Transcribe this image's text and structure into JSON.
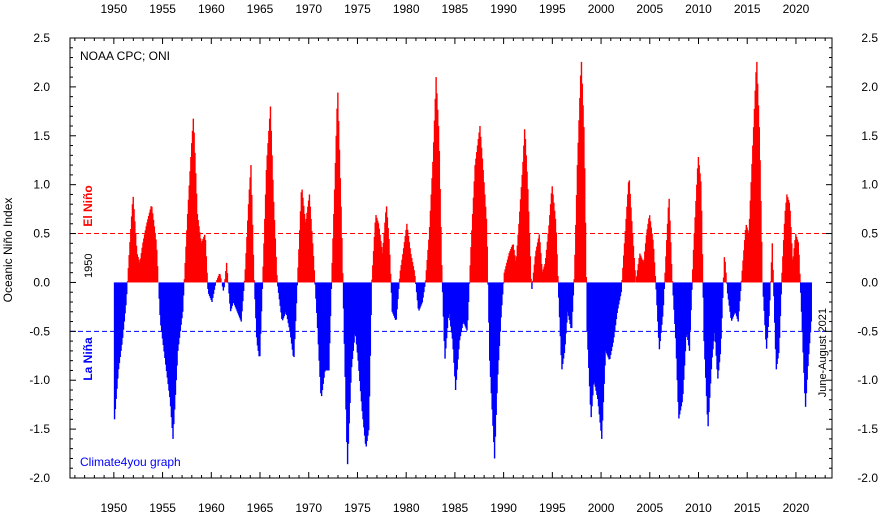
{
  "chart_data": {
    "type": "bar",
    "title": "NOAA CPC; ONI",
    "ylabel": "Oceanic Niño Index",
    "credit": "Climate4you graph",
    "start_label": "1950",
    "end_label": "June-August 2021",
    "el_nino_label": "El Niño",
    "la_nina_label": "La Niña",
    "thresholds": [
      0.5,
      -0.5
    ],
    "xlim": [
      1945.5,
      2023.7
    ],
    "ylim": [
      -2.0,
      2.5
    ],
    "xticks": [
      1950,
      1955,
      1960,
      1965,
      1970,
      1975,
      1980,
      1985,
      1990,
      1995,
      2000,
      2005,
      2010,
      2015,
      2020
    ],
    "yticks": [
      2.5,
      2.0,
      1.5,
      1.0,
      0.5,
      0.0,
      -0.5,
      -1.0,
      -1.5,
      -2.0
    ],
    "ytick_labels": [
      "2.5",
      "2.0",
      "1.5",
      "1.0",
      "0.5",
      "0.0",
      "-0.5",
      "-1.0",
      "-1.5",
      "-2.0"
    ],
    "colors": {
      "positive": "#ff0000",
      "negative": "#0000ff",
      "el_nino_line": "#ff0000",
      "la_nina_line": "#0000ff"
    },
    "keypoints": [
      [
        1950.0,
        -1.4
      ],
      [
        1950.4,
        -0.9
      ],
      [
        1950.8,
        -0.6
      ],
      [
        1951.2,
        -0.2
      ],
      [
        1951.7,
        0.6
      ],
      [
        1951.9,
        0.9
      ],
      [
        1952.3,
        0.3
      ],
      [
        1952.6,
        0.2
      ],
      [
        1952.9,
        0.4
      ],
      [
        1953.3,
        0.6
      ],
      [
        1953.8,
        0.8
      ],
      [
        1954.3,
        0.4
      ],
      [
        1954.7,
        -0.4
      ],
      [
        1955.2,
        -0.8
      ],
      [
        1955.7,
        -1.2
      ],
      [
        1956.0,
        -1.6
      ],
      [
        1956.5,
        -0.7
      ],
      [
        1957.0,
        -0.3
      ],
      [
        1957.5,
        0.7
      ],
      [
        1957.9,
        1.4
      ],
      [
        1958.1,
        1.7
      ],
      [
        1958.5,
        0.7
      ],
      [
        1958.9,
        0.4
      ],
      [
        1959.3,
        0.5
      ],
      [
        1959.6,
        -0.1
      ],
      [
        1960.0,
        -0.2
      ],
      [
        1960.4,
        0.0
      ],
      [
        1960.8,
        0.1
      ],
      [
        1961.2,
        -0.1
      ],
      [
        1961.5,
        0.2
      ],
      [
        1961.9,
        -0.3
      ],
      [
        1962.2,
        -0.2
      ],
      [
        1962.6,
        -0.3
      ],
      [
        1963.0,
        -0.4
      ],
      [
        1963.4,
        0.1
      ],
      [
        1963.8,
        0.9
      ],
      [
        1964.0,
        1.2
      ],
      [
        1964.3,
        0.1
      ],
      [
        1964.6,
        -0.6
      ],
      [
        1964.9,
        -0.8
      ],
      [
        1965.3,
        0.3
      ],
      [
        1965.6,
        1.2
      ],
      [
        1966.0,
        1.8
      ],
      [
        1966.3,
        0.9
      ],
      [
        1966.7,
        0.0
      ],
      [
        1967.2,
        -0.4
      ],
      [
        1967.6,
        -0.3
      ],
      [
        1968.0,
        -0.5
      ],
      [
        1968.4,
        -0.8
      ],
      [
        1968.9,
        0.3
      ],
      [
        1969.2,
        1.0
      ],
      [
        1969.6,
        0.6
      ],
      [
        1970.0,
        0.9
      ],
      [
        1970.4,
        0.3
      ],
      [
        1970.8,
        -0.4
      ],
      [
        1971.2,
        -1.2
      ],
      [
        1971.6,
        -0.9
      ],
      [
        1972.0,
        -0.9
      ],
      [
        1972.3,
        0.1
      ],
      [
        1972.6,
        1.0
      ],
      [
        1972.9,
        2.0
      ],
      [
        1973.3,
        0.6
      ],
      [
        1973.6,
        -0.7
      ],
      [
        1973.9,
        -1.9
      ],
      [
        1974.3,
        -0.9
      ],
      [
        1974.7,
        -0.5
      ],
      [
        1975.0,
        -0.8
      ],
      [
        1975.4,
        -1.3
      ],
      [
        1975.8,
        -1.7
      ],
      [
        1976.1,
        -1.5
      ],
      [
        1976.4,
        0.0
      ],
      [
        1976.8,
        0.7
      ],
      [
        1977.1,
        0.6
      ],
      [
        1977.5,
        0.3
      ],
      [
        1977.9,
        0.8
      ],
      [
        1978.2,
        0.4
      ],
      [
        1978.5,
        -0.3
      ],
      [
        1978.9,
        -0.4
      ],
      [
        1979.3,
        0.1
      ],
      [
        1979.6,
        0.3
      ],
      [
        1980.0,
        0.6
      ],
      [
        1980.4,
        0.3
      ],
      [
        1980.8,
        0.1
      ],
      [
        1981.2,
        -0.3
      ],
      [
        1981.6,
        -0.2
      ],
      [
        1981.9,
        0.0
      ],
      [
        1982.3,
        0.5
      ],
      [
        1982.7,
        1.3
      ],
      [
        1983.0,
        2.1
      ],
      [
        1983.3,
        1.5
      ],
      [
        1983.6,
        0.1
      ],
      [
        1983.9,
        -0.8
      ],
      [
        1984.3,
        -0.3
      ],
      [
        1984.7,
        -0.6
      ],
      [
        1985.0,
        -1.1
      ],
      [
        1985.4,
        -0.6
      ],
      [
        1985.8,
        -0.4
      ],
      [
        1986.2,
        -0.5
      ],
      [
        1986.6,
        0.4
      ],
      [
        1987.0,
        1.2
      ],
      [
        1987.5,
        1.6
      ],
      [
        1987.8,
        1.2
      ],
      [
        1988.2,
        0.6
      ],
      [
        1988.5,
        -0.8
      ],
      [
        1988.8,
        -1.4
      ],
      [
        1989.0,
        -1.8
      ],
      [
        1989.3,
        -1.0
      ],
      [
        1989.7,
        -0.3
      ],
      [
        1990.0,
        0.1
      ],
      [
        1990.5,
        0.3
      ],
      [
        1990.9,
        0.4
      ],
      [
        1991.2,
        0.2
      ],
      [
        1991.5,
        0.6
      ],
      [
        1991.9,
        1.2
      ],
      [
        1992.1,
        1.6
      ],
      [
        1992.4,
        1.0
      ],
      [
        1992.8,
        -0.1
      ],
      [
        1993.2,
        0.3
      ],
      [
        1993.6,
        0.5
      ],
      [
        1993.9,
        0.1
      ],
      [
        1994.2,
        0.2
      ],
      [
        1994.6,
        0.6
      ],
      [
        1994.9,
        1.0
      ],
      [
        1995.3,
        0.6
      ],
      [
        1995.6,
        -0.2
      ],
      [
        1995.9,
        -0.9
      ],
      [
        1996.2,
        -0.7
      ],
      [
        1996.5,
        -0.3
      ],
      [
        1996.9,
        -0.5
      ],
      [
        1997.2,
        0.1
      ],
      [
        1997.5,
        1.2
      ],
      [
        1997.9,
        2.3
      ],
      [
        1998.2,
        1.5
      ],
      [
        1998.5,
        -0.5
      ],
      [
        1998.9,
        -1.4
      ],
      [
        1999.2,
        -1.0
      ],
      [
        1999.6,
        -1.2
      ],
      [
        2000.0,
        -1.6
      ],
      [
        2000.4,
        -0.7
      ],
      [
        2000.8,
        -0.8
      ],
      [
        2001.2,
        -0.6
      ],
      [
        2001.6,
        -0.3
      ],
      [
        2002.0,
        -0.1
      ],
      [
        2002.4,
        0.5
      ],
      [
        2002.8,
        1.1
      ],
      [
        2003.1,
        0.6
      ],
      [
        2003.5,
        0.0
      ],
      [
        2003.9,
        0.3
      ],
      [
        2004.3,
        0.2
      ],
      [
        2004.6,
        0.5
      ],
      [
        2004.9,
        0.7
      ],
      [
        2005.3,
        0.4
      ],
      [
        2005.6,
        -0.1
      ],
      [
        2005.9,
        -0.7
      ],
      [
        2006.3,
        -0.3
      ],
      [
        2006.6,
        0.3
      ],
      [
        2006.9,
        0.9
      ],
      [
        2007.2,
        0.1
      ],
      [
        2007.6,
        -0.6
      ],
      [
        2007.9,
        -1.4
      ],
      [
        2008.3,
        -1.2
      ],
      [
        2008.7,
        -0.5
      ],
      [
        2009.0,
        -0.7
      ],
      [
        2009.4,
        0.3
      ],
      [
        2009.9,
        1.3
      ],
      [
        2010.2,
        1.0
      ],
      [
        2010.5,
        -0.6
      ],
      [
        2010.9,
        -1.5
      ],
      [
        2011.3,
        -0.8
      ],
      [
        2011.6,
        -0.5
      ],
      [
        2011.9,
        -1.0
      ],
      [
        2012.2,
        -0.7
      ],
      [
        2012.6,
        0.3
      ],
      [
        2012.9,
        -0.1
      ],
      [
        2013.3,
        -0.4
      ],
      [
        2013.7,
        -0.3
      ],
      [
        2014.0,
        -0.4
      ],
      [
        2014.4,
        0.1
      ],
      [
        2014.8,
        0.6
      ],
      [
        2015.1,
        0.5
      ],
      [
        2015.5,
        1.4
      ],
      [
        2015.9,
        2.3
      ],
      [
        2016.2,
        1.5
      ],
      [
        2016.5,
        0.0
      ],
      [
        2016.9,
        -0.7
      ],
      [
        2017.2,
        -0.3
      ],
      [
        2017.5,
        0.4
      ],
      [
        2017.9,
        -0.9
      ],
      [
        2018.2,
        -0.7
      ],
      [
        2018.5,
        0.1
      ],
      [
        2018.8,
        0.7
      ],
      [
        2019.0,
        0.9
      ],
      [
        2019.3,
        0.8
      ],
      [
        2019.6,
        0.2
      ],
      [
        2019.9,
        0.5
      ],
      [
        2020.2,
        0.4
      ],
      [
        2020.5,
        -0.3
      ],
      [
        2020.9,
        -1.3
      ],
      [
        2021.2,
        -0.8
      ],
      [
        2021.5,
        -0.4
      ]
    ]
  }
}
